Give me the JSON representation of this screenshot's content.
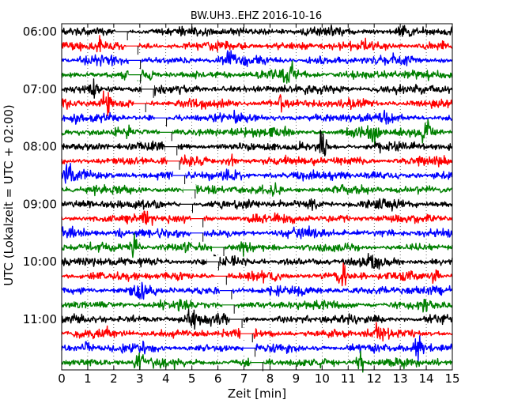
{
  "chart_data": {
    "type": "line",
    "title": "BW.UH3..EHZ 2016-10-16",
    "xlabel": "Zeit  [min]",
    "ylabel": "UTC (Lokalzeit = UTC + 02:00)",
    "xlim": [
      0,
      15
    ],
    "x_ticks": [
      "0",
      "1",
      "2",
      "3",
      "4",
      "5",
      "6",
      "7",
      "8",
      "9",
      "10",
      "11",
      "12",
      "13",
      "14",
      "15"
    ],
    "y_ticks": [
      "06:00",
      "07:00",
      "08:00",
      "09:00",
      "10:00",
      "11:00"
    ],
    "rows_per_hour": 4,
    "start_time": "06:00",
    "line_colors": [
      "#000000",
      "#ff0000",
      "#0000ff",
      "#008000"
    ],
    "grid": true,
    "series": [
      {
        "start": "06:00",
        "color": "#000000",
        "gap_min": 2.1,
        "events": [
          {
            "x": 13.2,
            "amp": 2.0
          }
        ]
      },
      {
        "start": "06:15",
        "color": "#ff0000",
        "gap_min": 2.5,
        "events": [
          {
            "x": 1.5,
            "amp": 2.0
          }
        ]
      },
      {
        "start": "06:30",
        "color": "#0000ff",
        "gap_min": 2.6,
        "events": [
          {
            "x": 6.4,
            "amp": 2.5
          }
        ]
      },
      {
        "start": "06:45",
        "color": "#008000",
        "gap_min": 2.6,
        "events": [
          {
            "x": 8.8,
            "amp": 2.0
          }
        ]
      },
      {
        "start": "07:00",
        "color": "#000000",
        "gap_min": 3.1,
        "events": [
          {
            "x": 1.2,
            "amp": 2.0
          }
        ]
      },
      {
        "start": "07:15",
        "color": "#ff0000",
        "gap_min": 2.8,
        "events": [
          {
            "x": 1.7,
            "amp": 3.5
          },
          {
            "x": 8.5,
            "amp": 2.0
          }
        ]
      },
      {
        "start": "07:30",
        "color": "#0000ff",
        "gap_min": 3.6,
        "events": [
          {
            "x": 12.5,
            "amp": 1.5
          }
        ]
      },
      {
        "start": "07:45",
        "color": "#008000",
        "gap_min": 3.8,
        "events": [
          {
            "x": 12.0,
            "amp": 3.0
          },
          {
            "x": 14.0,
            "amp": 3.0
          }
        ]
      },
      {
        "start": "08:00",
        "color": "#000000",
        "gap_min": 4.0,
        "events": [
          {
            "x": 10.0,
            "amp": 3.5
          }
        ]
      },
      {
        "start": "08:15",
        "color": "#ff0000",
        "gap_min": 4.1,
        "events": [
          {
            "x": 6.5,
            "amp": 1.5
          }
        ]
      },
      {
        "start": "08:30",
        "color": "#0000ff",
        "gap_min": 4.3,
        "events": [
          {
            "x": 0.2,
            "amp": 2.5
          },
          {
            "x": 6.6,
            "amp": 2.0
          }
        ]
      },
      {
        "start": "08:45",
        "color": "#008000",
        "gap_min": 4.7,
        "events": [
          {
            "x": 8.2,
            "amp": 1.5
          }
        ]
      },
      {
        "start": "09:00",
        "color": "#000000",
        "gap_min": 4.6,
        "events": [
          {
            "x": 9.7,
            "amp": 1.5
          }
        ]
      },
      {
        "start": "09:15",
        "color": "#ff0000",
        "gap_min": 5.0,
        "events": [
          {
            "x": 3.3,
            "amp": 1.5
          }
        ]
      },
      {
        "start": "09:30",
        "color": "#0000ff",
        "gap_min": 5.0,
        "events": [
          {
            "x": 2.2,
            "amp": 1.5
          }
        ]
      },
      {
        "start": "09:45",
        "color": "#008000",
        "gap_min": 5.8,
        "events": [
          {
            "x": 2.8,
            "amp": 3.0
          },
          {
            "x": 7.0,
            "amp": 1.5
          }
        ]
      },
      {
        "start": "10:00",
        "color": "#000000",
        "gap_min": 5.6,
        "events": [
          {
            "x": 12.0,
            "amp": 1.5
          }
        ]
      },
      {
        "start": "10:15",
        "color": "#ff0000",
        "gap_min": 5.9,
        "events": [
          {
            "x": 10.8,
            "amp": 2.0
          },
          {
            "x": 14.4,
            "amp": 1.5
          }
        ]
      },
      {
        "start": "10:30",
        "color": "#0000ff",
        "gap_min": 6.1,
        "events": [
          {
            "x": 3.0,
            "amp": 1.5
          }
        ]
      },
      {
        "start": "10:45",
        "color": "#008000",
        "gap_min": 6.2,
        "events": [
          {
            "x": 14.0,
            "amp": 1.5
          }
        ]
      },
      {
        "start": "11:00",
        "color": "#000000",
        "gap_min": 6.5,
        "events": [
          {
            "x": 5.0,
            "amp": 2.0
          }
        ]
      },
      {
        "start": "11:15",
        "color": "#ff0000",
        "gap_min": 6.9,
        "events": [
          {
            "x": 12.2,
            "amp": 2.0
          }
        ]
      },
      {
        "start": "11:30",
        "color": "#0000ff",
        "gap_min": 7.0,
        "events": [
          {
            "x": 1.0,
            "amp": 2.0
          },
          {
            "x": 13.7,
            "amp": 2.5
          }
        ]
      },
      {
        "start": "11:45",
        "color": "#008000",
        "gap_min": 7.3,
        "events": [
          {
            "x": 3.0,
            "amp": 2.5
          },
          {
            "x": 11.5,
            "amp": 3.0
          }
        ]
      }
    ]
  }
}
